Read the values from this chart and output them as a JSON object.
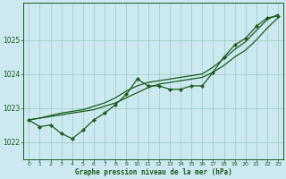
{
  "title": "Graphe pression niveau de la mer (hPa)",
  "background_color": "#cce8f0",
  "grid_color": "#99ccbb",
  "line_color": "#1a5c1a",
  "marker_color": "#1a5c1a",
  "xlim": [
    -0.5,
    23.5
  ],
  "ylim": [
    1021.5,
    1026.1
  ],
  "xticks": [
    0,
    1,
    2,
    3,
    4,
    5,
    6,
    7,
    8,
    9,
    10,
    11,
    12,
    13,
    14,
    15,
    16,
    17,
    18,
    19,
    20,
    21,
    22,
    23
  ],
  "yticks": [
    1022,
    1023,
    1024,
    1025
  ],
  "series1_x": [
    0,
    1,
    2,
    3,
    4,
    5,
    6,
    7,
    8,
    9,
    10,
    11,
    12,
    13,
    14,
    15,
    16,
    17,
    18,
    19,
    20,
    21,
    22,
    23
  ],
  "series1_y": [
    1022.65,
    1022.45,
    1022.5,
    1022.25,
    1022.1,
    1022.35,
    1022.65,
    1022.85,
    1023.1,
    1023.4,
    1023.85,
    1023.65,
    1023.65,
    1023.55,
    1023.55,
    1023.65,
    1023.65,
    1024.05,
    1024.5,
    1024.85,
    1025.05,
    1025.4,
    1025.65,
    1025.7
  ],
  "series2_x": [
    0,
    1,
    2,
    3,
    4,
    5,
    6,
    7,
    8,
    9,
    10,
    11,
    12,
    13,
    14,
    15,
    16,
    17,
    18,
    19,
    20,
    21,
    22,
    23
  ],
  "series2_y": [
    1022.65,
    1022.7,
    1022.75,
    1022.8,
    1022.85,
    1022.9,
    1022.95,
    1023.05,
    1023.15,
    1023.3,
    1023.45,
    1023.6,
    1023.7,
    1023.75,
    1023.8,
    1023.85,
    1023.9,
    1024.05,
    1024.25,
    1024.5,
    1024.7,
    1025.0,
    1025.35,
    1025.65
  ],
  "series3_x": [
    0,
    1,
    2,
    3,
    4,
    5,
    6,
    7,
    8,
    9,
    10,
    11,
    12,
    13,
    14,
    15,
    16,
    17,
    18,
    19,
    20,
    21,
    22,
    23
  ],
  "series3_y": [
    1022.65,
    1022.7,
    1022.78,
    1022.85,
    1022.9,
    1022.95,
    1023.05,
    1023.15,
    1023.3,
    1023.5,
    1023.65,
    1023.75,
    1023.8,
    1023.85,
    1023.9,
    1023.95,
    1024.0,
    1024.2,
    1024.45,
    1024.72,
    1024.95,
    1025.28,
    1025.6,
    1025.75
  ]
}
